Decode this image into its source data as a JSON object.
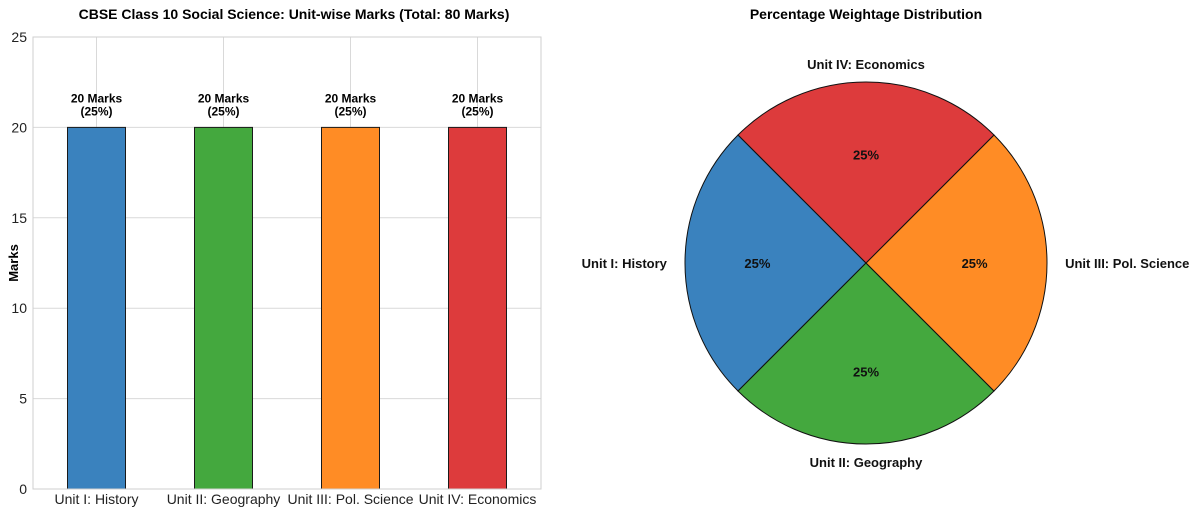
{
  "chart_data": [
    {
      "type": "bar",
      "title": "CBSE Class 10 Social Science: Unit-wise Marks (Total: 80 Marks)",
      "xlabel": "",
      "ylabel": "Marks",
      "ylim": [
        0,
        25
      ],
      "yticks": [
        0,
        5,
        10,
        15,
        20,
        25
      ],
      "grid": true,
      "categories": [
        "Unit I: History",
        "Unit II: Geography",
        "Unit III: Pol. Science",
        "Unit IV: Economics"
      ],
      "values": [
        20,
        20,
        20,
        20
      ],
      "data_labels": [
        [
          "20 Marks",
          "(25%)"
        ],
        [
          "20 Marks",
          "(25%)"
        ],
        [
          "20 Marks",
          "(25%)"
        ],
        [
          "20 Marks",
          "(25%)"
        ]
      ],
      "colors": [
        "#3a82be",
        "#44a83e",
        "#ff8c25",
        "#dd3b3c"
      ]
    },
    {
      "type": "pie",
      "title": "Percentage Weightage Distribution",
      "labels": [
        "Unit I: History",
        "Unit II: Geography",
        "Unit III: Pol. Science",
        "Unit IV: Economics"
      ],
      "values": [
        25,
        25,
        25,
        25
      ],
      "pct_labels": [
        "25%",
        "25%",
        "25%",
        "25%"
      ],
      "start_angle_deg": 135,
      "direction": "counterclockwise",
      "colors": [
        "#3a82be",
        "#44a83e",
        "#ff8c25",
        "#dd3b3c"
      ]
    }
  ]
}
